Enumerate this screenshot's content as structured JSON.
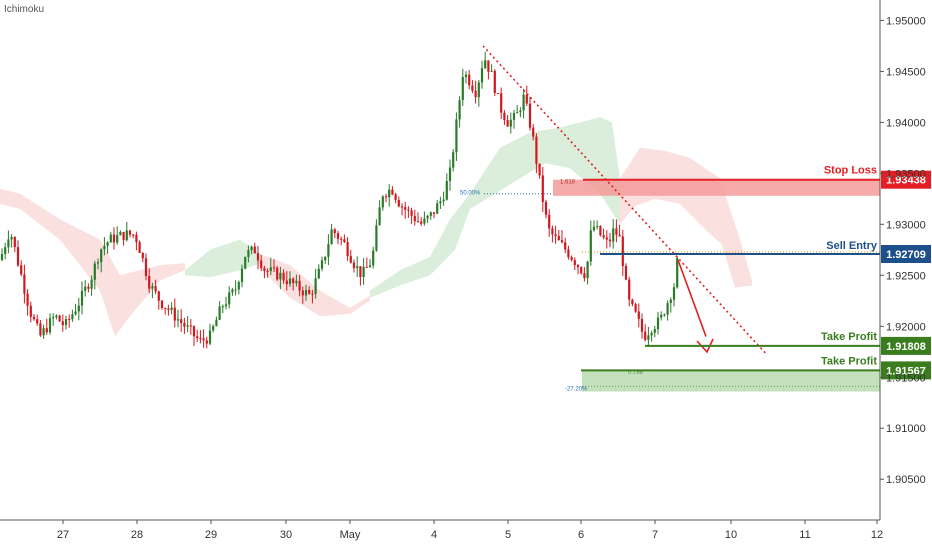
{
  "study_label": "Ichimoku",
  "colors": {
    "bull": "#2a7a2a",
    "bear": "#d0181e",
    "cloud_bull": "#cfe8cf",
    "cloud_bear": "#f9d5d5",
    "stop": "#e31e24",
    "entry": "#1d4f8b",
    "profit": "#3a7d1e",
    "trend": "#e02020"
  },
  "chart_data": {
    "type": "candlestick",
    "title": "",
    "ylim": [
      1.901,
      1.952
    ],
    "y_ticks": [
      "1.90500",
      "1.91000",
      "1.91500",
      "1.92000",
      "1.92500",
      "1.93000",
      "1.93500",
      "1.94000",
      "1.94500",
      "1.95000"
    ],
    "x_ticks": [
      "27",
      "28",
      "29",
      "30",
      "May",
      "4",
      "5",
      "6",
      "7",
      "10",
      "11",
      "12"
    ],
    "levels": [
      {
        "name": "Stop Loss",
        "value": 1.93438,
        "price_label": "1.93438"
      },
      {
        "name": "Sell Entry",
        "value": 1.92709,
        "price_label": "1.92709"
      },
      {
        "name": "Take Profit",
        "value": 1.91808,
        "price_label": "1.91808"
      },
      {
        "name": "Take Profit",
        "value": 1.91567,
        "price_label": "1.91567"
      }
    ],
    "fib_annotations": [
      "50.00%",
      "1.618",
      "0.786",
      "-27.20%"
    ]
  }
}
